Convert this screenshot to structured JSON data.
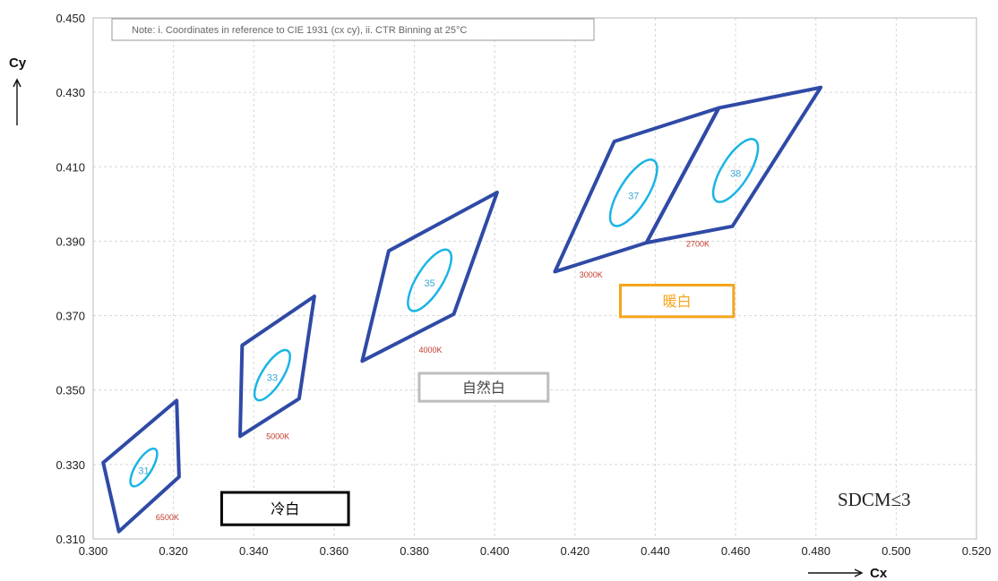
{
  "chart_data": {
    "type": "scatter",
    "xlabel": "Cx",
    "ylabel": "Cy",
    "xlim": [
      0.3,
      0.52
    ],
    "ylim": [
      0.31,
      0.45
    ],
    "x_ticks": [
      "0.300",
      "0.320",
      "0.340",
      "0.360",
      "0.380",
      "0.400",
      "0.420",
      "0.440",
      "0.460",
      "0.480",
      "0.500",
      "0.520"
    ],
    "y_ticks": [
      "0.310",
      "0.330",
      "0.350",
      "0.370",
      "0.390",
      "0.410",
      "0.430",
      "0.450"
    ],
    "grid": true,
    "note": "Note: i. Coordinates in reference to CIE 1931 (cx cy), ii. CTR Binning at 25°C",
    "sdcm": "SDCM≤3",
    "bins": [
      {
        "name": "31",
        "cct": "6500K",
        "quad": [
          [
            0.3025,
            0.3305
          ],
          [
            0.3208,
            0.3472
          ],
          [
            0.3214,
            0.3267
          ],
          [
            0.3064,
            0.312
          ]
        ],
        "ellipse": {
          "cx": 0.3126,
          "cy": 0.3292,
          "a": 0.0054,
          "b": 0.002,
          "angle": 58
        },
        "label_at": [
          0.3126,
          0.3284
        ],
        "cct_at": [
          0.3185,
          0.315
        ]
      },
      {
        "name": "33",
        "cct": "5000K",
        "quad": [
          [
            0.3371,
            0.362
          ],
          [
            0.3551,
            0.3752
          ],
          [
            0.3513,
            0.3477
          ],
          [
            0.3366,
            0.3376
          ]
        ],
        "ellipse": {
          "cx": 0.3446,
          "cy": 0.354,
          "a": 0.0072,
          "b": 0.0026,
          "angle": 58
        },
        "label_at": [
          0.3446,
          0.3534
        ],
        "cct_at": [
          0.346,
          0.3368
        ]
      },
      {
        "name": "35",
        "cct": "4000K",
        "quad": [
          [
            0.3736,
            0.3874
          ],
          [
            0.4006,
            0.4031
          ],
          [
            0.3898,
            0.3704
          ],
          [
            0.367,
            0.3578
          ]
        ],
        "ellipse": {
          "cx": 0.3838,
          "cy": 0.3795,
          "a": 0.0088,
          "b": 0.0032,
          "angle": 58
        },
        "label_at": [
          0.3838,
          0.3788
        ],
        "cct_at": [
          0.384,
          0.36
        ]
      },
      {
        "name": "37",
        "cct": "3000K",
        "quad": [
          [
            0.4298,
            0.4168
          ],
          [
            0.4558,
            0.4258
          ],
          [
            0.4378,
            0.3896
          ],
          [
            0.415,
            0.3818
          ]
        ],
        "ellipse": {
          "cx": 0.4346,
          "cy": 0.403,
          "a": 0.0095,
          "b": 0.0035,
          "angle": 58
        },
        "label_at": [
          0.4346,
          0.4023
        ],
        "cct_at": [
          0.424,
          0.3802
        ]
      },
      {
        "name": "38",
        "cct": "2700K",
        "quad": [
          [
            0.4558,
            0.4258
          ],
          [
            0.4812,
            0.4313
          ],
          [
            0.4592,
            0.394
          ],
          [
            0.4378,
            0.3896
          ]
        ],
        "ellipse": {
          "cx": 0.46,
          "cy": 0.409,
          "a": 0.009,
          "b": 0.0034,
          "angle": 58
        },
        "label_at": [
          0.46,
          0.4083
        ],
        "cct_at": [
          0.4506,
          0.3885
        ]
      }
    ],
    "groups": [
      {
        "name": "cool-white",
        "text": "冷白",
        "color": "#000000",
        "box": [
          0.332,
          0.3225,
          0.3636,
          0.3138
        ]
      },
      {
        "name": "natural-white",
        "text": "自然白",
        "color": "#bdbdbd",
        "box": [
          0.3812,
          0.3545,
          0.4133,
          0.347
        ]
      },
      {
        "name": "warm-white",
        "text": "暖白",
        "color": "#f5a51c",
        "box": [
          0.4313,
          0.3782,
          0.4595,
          0.3697
        ]
      }
    ]
  }
}
